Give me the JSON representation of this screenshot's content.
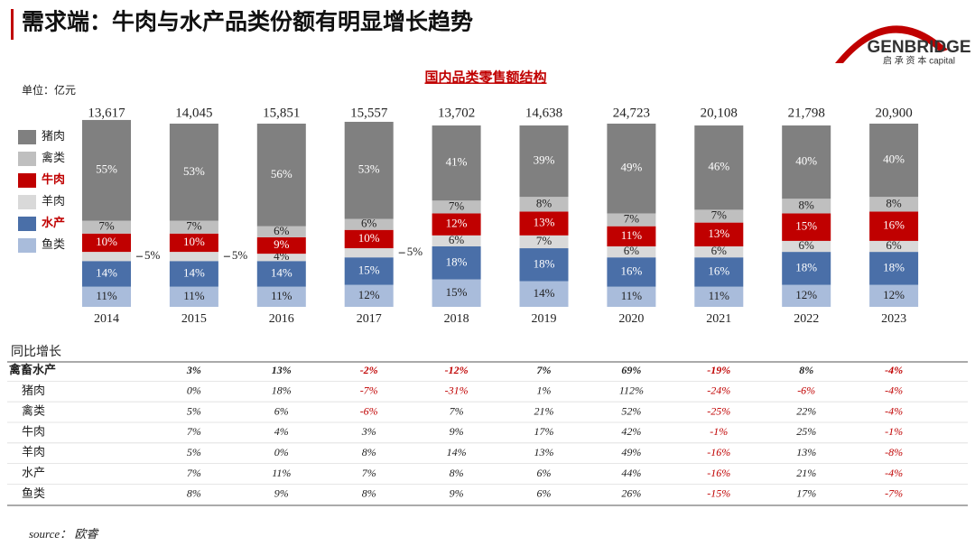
{
  "header": {
    "title": "需求端：牛肉与水产品类份额有明显增长趋势"
  },
  "logo": {
    "name": "GENBRIDGE",
    "sub": "启 承 资 本 capital"
  },
  "chart_data": {
    "type": "stacked_bar",
    "title": "国内品类零售额结构",
    "unit_note": "单位：亿元",
    "categories": [
      "2014",
      "2015",
      "2016",
      "2017",
      "2018",
      "2019",
      "2020",
      "2021",
      "2022",
      "2023"
    ],
    "totals": {
      "values": [
        13617,
        14045,
        15851,
        15557,
        13702,
        14638,
        24723,
        20108,
        21798,
        20900
      ],
      "value_labels": [
        "13,617",
        "14,045",
        "15,851",
        "15,557",
        "13,702",
        "14,638",
        "24,723",
        "20,108",
        "21,798",
        "20,900"
      ]
    },
    "series": [
      {
        "name": "鱼类",
        "color": "#a9bcdb",
        "text_color": "#222222",
        "legend_color": "#222222",
        "values": [
          11,
          11,
          11,
          12,
          15,
          14,
          11,
          11,
          12,
          12
        ],
        "value_labels": [
          "11%",
          "11%",
          "11%",
          "12%",
          "15%",
          "14%",
          "11%",
          "11%",
          "12%",
          "12%"
        ]
      },
      {
        "name": "水产",
        "color": "#4a6fa8",
        "text_color": "#ffffff",
        "legend_color": "#c00000",
        "values": [
          14,
          14,
          14,
          15,
          18,
          18,
          16,
          16,
          18,
          18
        ],
        "value_labels": [
          "14%",
          "14%",
          "14%",
          "15%",
          "18%",
          "18%",
          "16%",
          "16%",
          "18%",
          "18%"
        ]
      },
      {
        "name": "羊肉",
        "color": "#d9d9d9",
        "text_color": "#222222",
        "legend_color": "#222222",
        "values": [
          5,
          5,
          4,
          5,
          6,
          7,
          6,
          6,
          6,
          6
        ],
        "value_labels": [
          "5%",
          "5%",
          "4%",
          "5%",
          "6%",
          "7%",
          "6%",
          "6%",
          "6%",
          "6%"
        ],
        "outside": [
          true,
          true,
          false,
          true,
          false,
          false,
          false,
          false,
          false,
          false
        ]
      },
      {
        "name": "牛肉",
        "color": "#c00000",
        "text_color": "#ffffff",
        "legend_color": "#c00000",
        "values": [
          10,
          10,
          9,
          10,
          12,
          13,
          11,
          13,
          15,
          16
        ],
        "value_labels": [
          "10%",
          "10%",
          "9%",
          "10%",
          "12%",
          "13%",
          "11%",
          "13%",
          "15%",
          "16%"
        ]
      },
      {
        "name": "禽类",
        "color": "#bfbfbf",
        "text_color": "#222222",
        "legend_color": "#222222",
        "values": [
          7,
          7,
          6,
          6,
          7,
          8,
          7,
          7,
          8,
          8
        ],
        "value_labels": [
          "7%",
          "7%",
          "6%",
          "6%",
          "7%",
          "8%",
          "7%",
          "7%",
          "8%",
          "8%"
        ]
      },
      {
        "name": "猪肉",
        "color": "#808080",
        "text_color": "#ffffff",
        "legend_color": "#222222",
        "values": [
          55,
          53,
          56,
          53,
          41,
          39,
          49,
          46,
          40,
          40
        ],
        "value_labels": [
          "55%",
          "53%",
          "56%",
          "53%",
          "41%",
          "39%",
          "49%",
          "46%",
          "40%",
          "40%"
        ]
      }
    ]
  },
  "table": {
    "title": "同比增长",
    "rows": [
      {
        "label": "禽畜水产",
        "bold": true,
        "cells": [
          "3%",
          "13%",
          "-2%",
          "-12%",
          "7%",
          "69%",
          "-19%",
          "8%",
          "-4%"
        ]
      },
      {
        "label": "猪肉",
        "cells": [
          "0%",
          "18%",
          "-7%",
          "-31%",
          "1%",
          "112%",
          "-24%",
          "-6%",
          "-4%"
        ]
      },
      {
        "label": "禽类",
        "cells": [
          "5%",
          "6%",
          "-6%",
          "7%",
          "21%",
          "52%",
          "-25%",
          "22%",
          "-4%"
        ]
      },
      {
        "label": "牛肉",
        "cells": [
          "7%",
          "4%",
          "3%",
          "9%",
          "17%",
          "42%",
          "-1%",
          "25%",
          "-1%"
        ]
      },
      {
        "label": "羊肉",
        "cells": [
          "5%",
          "0%",
          "8%",
          "14%",
          "13%",
          "49%",
          "-16%",
          "13%",
          "-8%"
        ]
      },
      {
        "label": "水产",
        "cells": [
          "7%",
          "11%",
          "7%",
          "8%",
          "6%",
          "44%",
          "-16%",
          "21%",
          "-4%"
        ]
      },
      {
        "label": "鱼类",
        "cells": [
          "8%",
          "9%",
          "8%",
          "9%",
          "6%",
          "26%",
          "-15%",
          "17%",
          "-7%"
        ]
      }
    ]
  },
  "source": "source： 欧睿"
}
